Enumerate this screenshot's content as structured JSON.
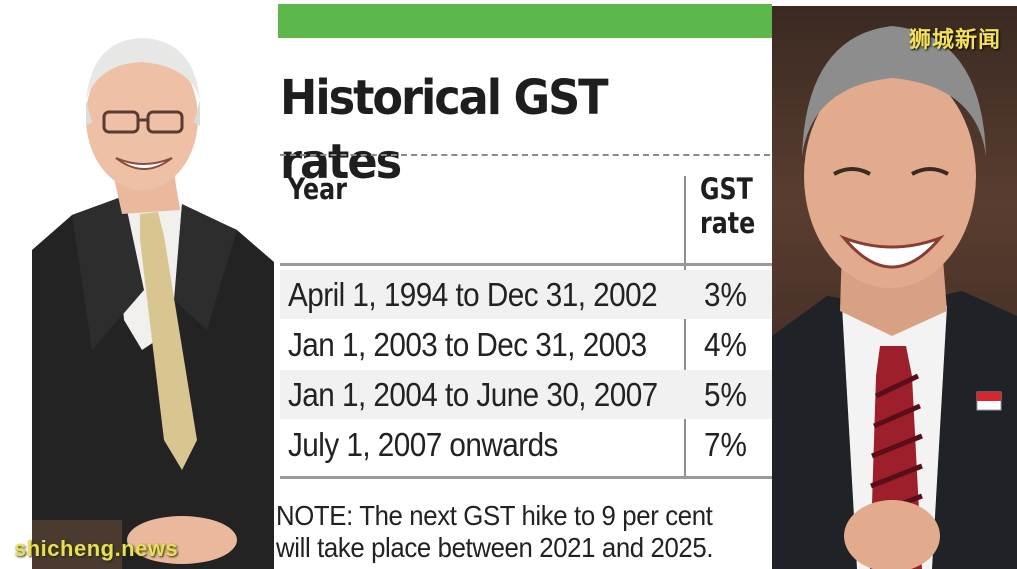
{
  "infographic": {
    "title": "Historical GST rates",
    "columns": {
      "year": "Year",
      "rate_line1": "GST",
      "rate_line2": "rate"
    },
    "rows": [
      {
        "year": "April 1, 1994 to Dec 31, 2002",
        "rate": "3%"
      },
      {
        "year": "Jan 1, 2003 to Dec 31, 2003",
        "rate": "4%"
      },
      {
        "year": "Jan 1, 2004 to June 30, 2007",
        "rate": "5%"
      },
      {
        "year": "July 1, 2007 onwards",
        "rate": "7%"
      }
    ],
    "note_line1": "NOTE: The next GST hike to 9 per cent",
    "note_line2": "will take place between 2021 and 2025.",
    "accent_color": "#5cb84a"
  },
  "watermarks": {
    "top_right": "狮城新闻",
    "bottom_left": "shicheng.news"
  }
}
